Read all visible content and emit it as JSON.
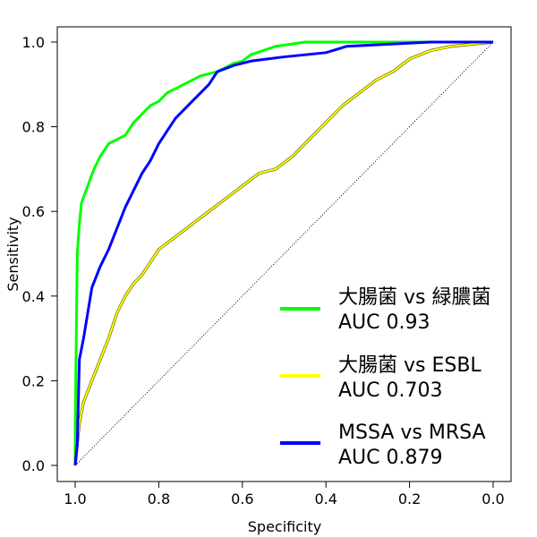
{
  "chart_data": {
    "type": "line",
    "xlabel": "Specificity",
    "ylabel": "Sensitivity",
    "x_reversed": true,
    "xlim": [
      1.0,
      0.0
    ],
    "ylim": [
      0.0,
      1.0
    ],
    "x_ticks": [
      "1.0",
      "0.8",
      "0.6",
      "0.4",
      "0.2",
      "0.0"
    ],
    "y_ticks": [
      "0.0",
      "0.2",
      "0.4",
      "0.6",
      "0.8",
      "1.0"
    ],
    "grid": false,
    "legend_position": "bottom-right",
    "reference_line": {
      "from": [
        1.0,
        0.0
      ],
      "to": [
        0.0,
        1.0
      ],
      "style": "dotted",
      "color": "#000000"
    },
    "series": [
      {
        "name": "大腸菌 vs 緑膿菌",
        "auc_label": "AUC 0.93",
        "color": "#00ff00",
        "points": [
          [
            1.0,
            0.0
          ],
          [
            1.0,
            0.08
          ],
          [
            0.995,
            0.5
          ],
          [
            0.99,
            0.57
          ],
          [
            0.985,
            0.62
          ],
          [
            0.97,
            0.66
          ],
          [
            0.955,
            0.7
          ],
          [
            0.94,
            0.73
          ],
          [
            0.92,
            0.76
          ],
          [
            0.9,
            0.77
          ],
          [
            0.88,
            0.78
          ],
          [
            0.86,
            0.81
          ],
          [
            0.84,
            0.83
          ],
          [
            0.82,
            0.85
          ],
          [
            0.8,
            0.86
          ],
          [
            0.78,
            0.88
          ],
          [
            0.76,
            0.89
          ],
          [
            0.74,
            0.9
          ],
          [
            0.72,
            0.91
          ],
          [
            0.7,
            0.92
          ],
          [
            0.68,
            0.925
          ],
          [
            0.66,
            0.93
          ],
          [
            0.64,
            0.94
          ],
          [
            0.62,
            0.95
          ],
          [
            0.6,
            0.955
          ],
          [
            0.58,
            0.97
          ],
          [
            0.55,
            0.98
          ],
          [
            0.52,
            0.99
          ],
          [
            0.45,
            1.0
          ],
          [
            0.0,
            1.0
          ]
        ]
      },
      {
        "name": "大腸菌 vs ESBL",
        "auc_label": "AUC 0.703",
        "color": "#ffff00",
        "points": [
          [
            1.0,
            0.0
          ],
          [
            0.995,
            0.05
          ],
          [
            0.99,
            0.1
          ],
          [
            0.98,
            0.15
          ],
          [
            0.96,
            0.2
          ],
          [
            0.94,
            0.25
          ],
          [
            0.92,
            0.3
          ],
          [
            0.9,
            0.36
          ],
          [
            0.88,
            0.4
          ],
          [
            0.86,
            0.43
          ],
          [
            0.84,
            0.45
          ],
          [
            0.82,
            0.48
          ],
          [
            0.8,
            0.51
          ],
          [
            0.76,
            0.54
          ],
          [
            0.72,
            0.57
          ],
          [
            0.68,
            0.6
          ],
          [
            0.64,
            0.63
          ],
          [
            0.6,
            0.66
          ],
          [
            0.56,
            0.69
          ],
          [
            0.52,
            0.7
          ],
          [
            0.48,
            0.73
          ],
          [
            0.44,
            0.77
          ],
          [
            0.4,
            0.81
          ],
          [
            0.36,
            0.85
          ],
          [
            0.32,
            0.88
          ],
          [
            0.28,
            0.91
          ],
          [
            0.24,
            0.93
          ],
          [
            0.2,
            0.96
          ],
          [
            0.15,
            0.98
          ],
          [
            0.1,
            0.99
          ],
          [
            0.05,
            0.995
          ],
          [
            0.0,
            1.0
          ]
        ]
      },
      {
        "name": "MSSA vs MRSA",
        "auc_label": "AUC 0.879",
        "color": "#0000ff",
        "points": [
          [
            1.0,
            0.0
          ],
          [
            0.995,
            0.05
          ],
          [
            0.99,
            0.25
          ],
          [
            0.98,
            0.3
          ],
          [
            0.97,
            0.36
          ],
          [
            0.96,
            0.42
          ],
          [
            0.94,
            0.47
          ],
          [
            0.92,
            0.51
          ],
          [
            0.9,
            0.56
          ],
          [
            0.88,
            0.61
          ],
          [
            0.86,
            0.65
          ],
          [
            0.84,
            0.69
          ],
          [
            0.82,
            0.72
          ],
          [
            0.8,
            0.76
          ],
          [
            0.78,
            0.79
          ],
          [
            0.76,
            0.82
          ],
          [
            0.74,
            0.84
          ],
          [
            0.72,
            0.86
          ],
          [
            0.7,
            0.88
          ],
          [
            0.68,
            0.9
          ],
          [
            0.66,
            0.93
          ],
          [
            0.62,
            0.945
          ],
          [
            0.58,
            0.955
          ],
          [
            0.54,
            0.96
          ],
          [
            0.5,
            0.965
          ],
          [
            0.45,
            0.97
          ],
          [
            0.4,
            0.975
          ],
          [
            0.35,
            0.99
          ],
          [
            0.25,
            0.995
          ],
          [
            0.15,
            1.0
          ],
          [
            0.0,
            1.0
          ]
        ]
      }
    ]
  }
}
